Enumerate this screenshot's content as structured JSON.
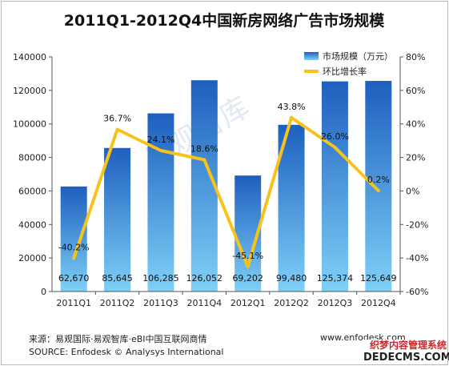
{
  "chart_data": {
    "type": "bar",
    "title": "2011Q1-2012Q4中国新房网络广告市场规模",
    "categories": [
      "2011Q1",
      "2011Q2",
      "2011Q3",
      "2011Q4",
      "2012Q1",
      "2012Q2",
      "2012Q3",
      "2012Q4"
    ],
    "series": [
      {
        "name": "市场规模（万元）",
        "type": "bar",
        "axis": "left",
        "values": [
          62670,
          85645,
          106285,
          126052,
          69202,
          99480,
          125374,
          125649
        ],
        "labels": [
          "62,670",
          "85,645",
          "106,285",
          "126,052",
          "69,202",
          "99,480",
          "125,374",
          "125,649"
        ]
      },
      {
        "name": "环比增长率",
        "type": "line",
        "axis": "right",
        "values": [
          -40.2,
          36.7,
          24.1,
          18.6,
          -45.1,
          43.8,
          26.0,
          0.2
        ],
        "labels": [
          "-40.2%",
          "36.7%",
          "24.1%",
          "18.6%",
          "-45.1%",
          "43.8%",
          "26.0%",
          "0.2%"
        ]
      }
    ],
    "y_left": {
      "ylim": [
        0,
        140000
      ],
      "ticks": [
        0,
        20000,
        40000,
        60000,
        80000,
        100000,
        120000,
        140000
      ],
      "tick_labels": [
        "0",
        "20000",
        "40000",
        "60000",
        "80000",
        "100000",
        "120000",
        "140000"
      ]
    },
    "y_right": {
      "ylim": [
        -60,
        80
      ],
      "ticks": [
        -60,
        -40,
        -20,
        0,
        20,
        40,
        60,
        80
      ],
      "tick_labels": [
        "-60%",
        "-40%",
        "-20%",
        "0%",
        "20%",
        "40%",
        "60%",
        "80%"
      ]
    },
    "legend_placement": "top-right",
    "grid": false,
    "colors": {
      "bar_top": "#1d5fbf",
      "bar_bottom": "#7fd0f7",
      "line": "#f7c21c"
    }
  },
  "watermark": "易观智库",
  "footer": {
    "source_cn": "来源：易观国际·易观智库·eBI中国互联网商情",
    "source_en": "SOURCE: Enfodesk © Analysys International",
    "website": "www.enfodesk.com"
  },
  "stamp": {
    "line1": "织梦内容管理系统",
    "line2": "DEDECMS.COM"
  }
}
